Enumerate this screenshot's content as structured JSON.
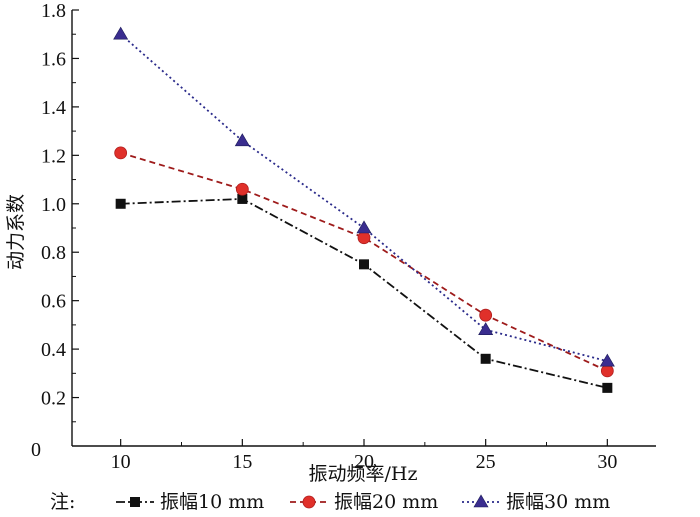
{
  "chart_data": {
    "type": "line",
    "title": "",
    "xlabel": "振动频率/Hz",
    "ylabel": "动力系数",
    "x": [
      10,
      15,
      20,
      25,
      30
    ],
    "xlim": [
      8,
      32
    ],
    "ylim": [
      0,
      1.8
    ],
    "x_ticks": [
      10,
      15,
      20,
      25,
      30
    ],
    "y_ticks": [
      0.2,
      0.4,
      0.6,
      0.8,
      1.0,
      1.2,
      1.4,
      1.6,
      1.8
    ],
    "y_tick_labels": [
      "0.2",
      "0.4",
      "0.6",
      "0.8",
      "1.0",
      "1.2",
      "1.4",
      "1.6",
      "1.8"
    ],
    "origin_label": "0",
    "grid": false,
    "legend_prefix": "注:",
    "legend_position": "bottom",
    "series": [
      {
        "name": "振幅10 mm",
        "values": [
          1.0,
          1.02,
          0.75,
          0.36,
          0.24
        ],
        "color": "#111111",
        "marker": "square",
        "dash": "dashdot"
      },
      {
        "name": "振幅20 mm",
        "values": [
          1.21,
          1.06,
          0.86,
          0.54,
          0.31
        ],
        "color": "#9e1b1b",
        "marker_color": "#e0302a",
        "marker": "circle",
        "dash": "dashed"
      },
      {
        "name": "振幅30 mm",
        "values": [
          1.7,
          1.26,
          0.9,
          0.48,
          0.35
        ],
        "color": "#2a2a8a",
        "marker_color": "#3a2d8f",
        "marker": "triangle",
        "dash": "dotted"
      }
    ]
  }
}
